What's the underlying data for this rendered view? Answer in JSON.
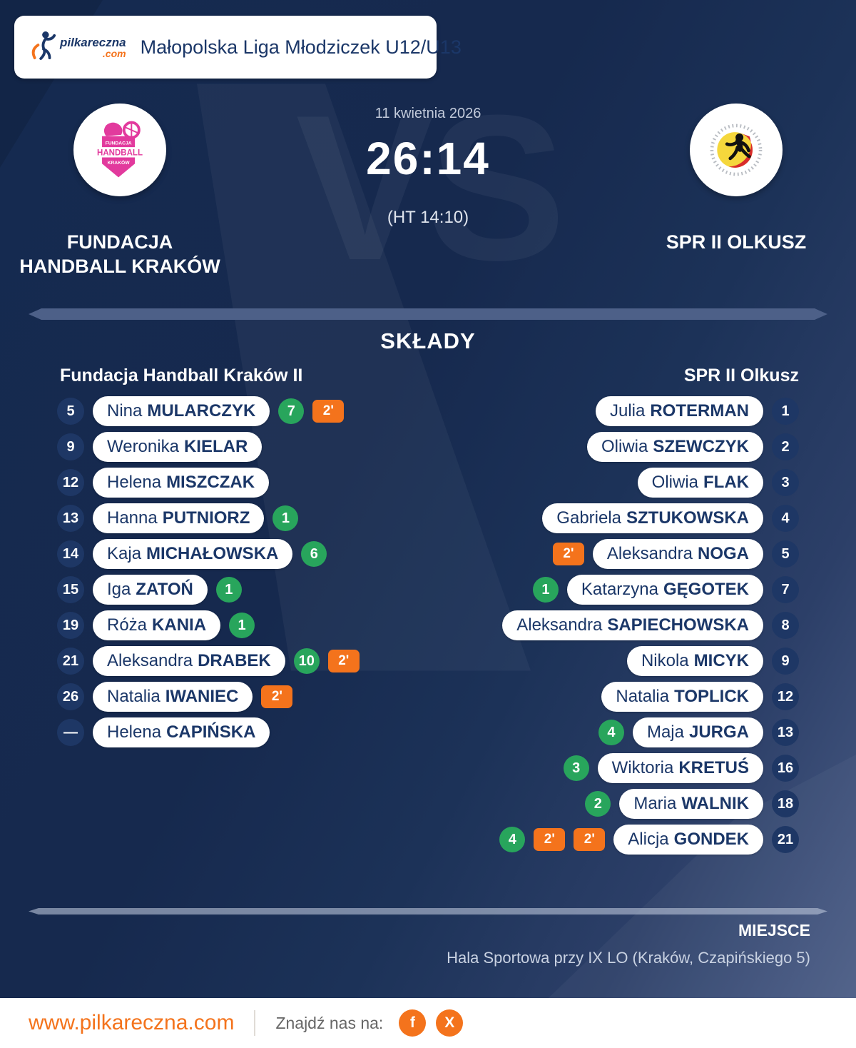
{
  "header": {
    "logo": {
      "name": "pilkareczna",
      "tld": ".com"
    },
    "league": "Małopolska Liga Młodziczek U12/U13"
  },
  "match": {
    "date": "11 kwietnia 2026",
    "score": "26:14",
    "halftime": "(HT 14:10)",
    "vs_watermark": "VS",
    "home": {
      "name_line1": "FUNDACJA",
      "name_line2": "HANDBALL KRAKÓW"
    },
    "away": {
      "name": "SPR II OLKUSZ"
    }
  },
  "lineups": {
    "title": "SKŁADY",
    "home_header": "Fundacja Handball Kraków II",
    "away_header": "SPR II Olkusz",
    "home_players": [
      {
        "number": "5",
        "first": "Nina",
        "last": "MULARCZYK",
        "goals": "7",
        "cards": [
          "2'"
        ]
      },
      {
        "number": "9",
        "first": "Weronika",
        "last": "KIELAR",
        "goals": null,
        "cards": []
      },
      {
        "number": "12",
        "first": "Helena",
        "last": "MISZCZAK",
        "goals": null,
        "cards": []
      },
      {
        "number": "13",
        "first": "Hanna",
        "last": "PUTNIORZ",
        "goals": "1",
        "cards": []
      },
      {
        "number": "14",
        "first": "Kaja",
        "last": "MICHAŁOWSKA",
        "goals": "6",
        "cards": []
      },
      {
        "number": "15",
        "first": "Iga",
        "last": "ZATOŃ",
        "goals": "1",
        "cards": []
      },
      {
        "number": "19",
        "first": "Róża",
        "last": "KANIA",
        "goals": "1",
        "cards": []
      },
      {
        "number": "21",
        "first": "Aleksandra",
        "last": "DRABEK",
        "goals": "10",
        "cards": [
          "2'"
        ]
      },
      {
        "number": "26",
        "first": "Natalia",
        "last": "IWANIEC",
        "goals": null,
        "cards": [
          "2'"
        ]
      },
      {
        "number": "—",
        "first": "Helena",
        "last": "CAPIŃSKA",
        "goals": null,
        "cards": []
      }
    ],
    "away_players": [
      {
        "number": "1",
        "first": "Julia",
        "last": "ROTERMAN",
        "goals": null,
        "cards": []
      },
      {
        "number": "2",
        "first": "Oliwia",
        "last": "SZEWCZYK",
        "goals": null,
        "cards": []
      },
      {
        "number": "3",
        "first": "Oliwia",
        "last": "FLAK",
        "goals": null,
        "cards": []
      },
      {
        "number": "4",
        "first": "Gabriela",
        "last": "SZTUKOWSKA",
        "goals": null,
        "cards": []
      },
      {
        "number": "5",
        "first": "Aleksandra",
        "last": "NOGA",
        "goals": null,
        "cards": [
          "2'"
        ]
      },
      {
        "number": "7",
        "first": "Katarzyna",
        "last": "GĘGOTEK",
        "goals": "1",
        "cards": []
      },
      {
        "number": "8",
        "first": "Aleksandra",
        "last": "SAPIECHOWSKA",
        "goals": null,
        "cards": []
      },
      {
        "number": "9",
        "first": "Nikola",
        "last": "MICYK",
        "goals": null,
        "cards": []
      },
      {
        "number": "12",
        "first": "Natalia",
        "last": "TOPLICK",
        "goals": null,
        "cards": []
      },
      {
        "number": "13",
        "first": "Maja",
        "last": "JURGA",
        "goals": "4",
        "cards": []
      },
      {
        "number": "16",
        "first": "Wiktoria",
        "last": "KRETUŚ",
        "goals": "3",
        "cards": []
      },
      {
        "number": "18",
        "first": "Maria",
        "last": "WALNIK",
        "goals": "2",
        "cards": []
      },
      {
        "number": "21",
        "first": "Alicja",
        "last": "GONDEK",
        "goals": "4",
        "cards": [
          "2'",
          "2'"
        ]
      }
    ]
  },
  "venue": {
    "label": "MIEJSCE",
    "value": "Hala Sportowa przy IX LO (Kraków, Czapińskiego 5)"
  },
  "footer": {
    "website": "www.pilkareczna.com",
    "find_us": "Znajdź nas na:",
    "social": [
      "f",
      "X"
    ]
  },
  "colors": {
    "green": "#28a55c",
    "orange": "#f4731c",
    "navy": "#1b3768"
  }
}
